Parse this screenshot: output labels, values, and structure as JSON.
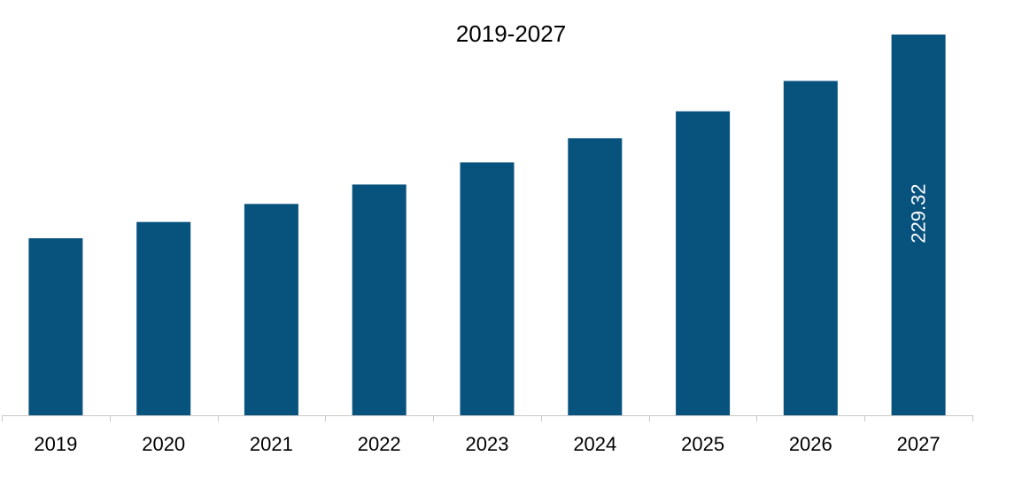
{
  "chart_data": {
    "type": "bar",
    "title": "2019-2027",
    "xlabel": "",
    "ylabel": "",
    "categories": [
      "2019",
      "2020",
      "2021",
      "2022",
      "2023",
      "2024",
      "2025",
      "2026",
      "2027"
    ],
    "values": [
      106.6,
      116.4,
      127.3,
      139.0,
      152.3,
      166.8,
      183.1,
      201.4,
      229.32
    ],
    "data_labels": [
      "",
      "",
      "",
      "",
      "",
      "",
      "",
      "",
      "229.32"
    ],
    "ylim": [
      0,
      229.32
    ],
    "grid": false,
    "legend": "none",
    "colors": {
      "bar": "#08527E",
      "axis": "#c8c8c8",
      "text": "#000000",
      "data_label": "#ffffff"
    }
  }
}
